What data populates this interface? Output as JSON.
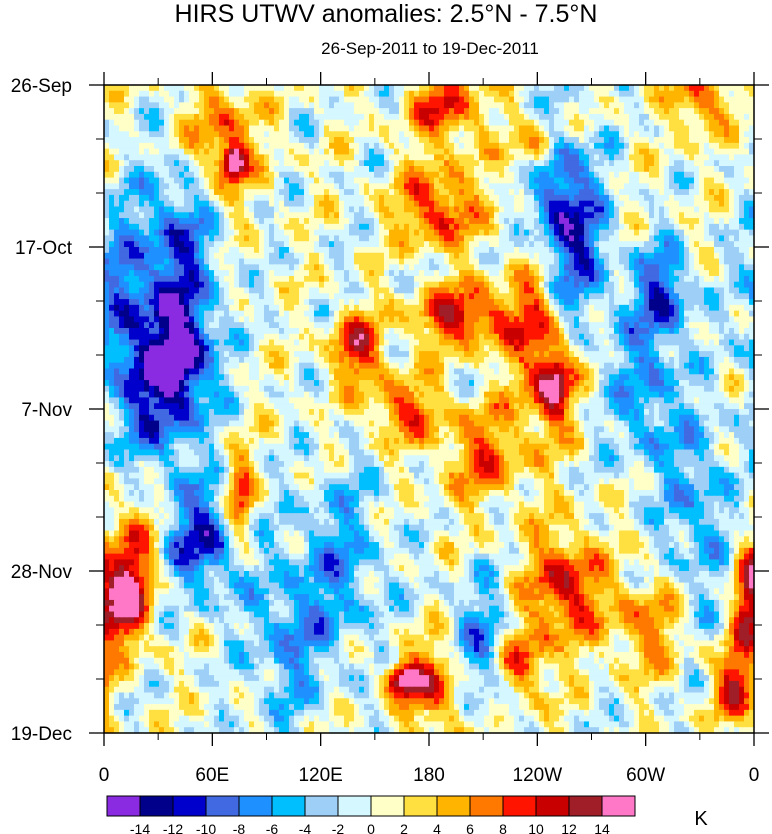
{
  "chart_data": {
    "type": "heatmap",
    "title": "HIRS UTWV anomalies: 2.5°N - 7.5°N",
    "subtitle": "26-Sep-2011 to 19-Dec-2011",
    "x_axis": {
      "variable": "longitude",
      "tick_labels": [
        "0",
        "60E",
        "120E",
        "180",
        "120W",
        "60W",
        "0"
      ],
      "tick_values_deg_east": [
        0,
        60,
        120,
        180,
        240,
        300,
        360
      ],
      "range": [
        0,
        360
      ]
    },
    "y_axis": {
      "variable": "time",
      "tick_labels": [
        "26-Sep",
        "17-Oct",
        "7-Nov",
        "28-Nov",
        "19-Dec"
      ],
      "tick_values_days": [
        0,
        21,
        42,
        63,
        84
      ],
      "range": [
        0,
        84
      ],
      "direction": "top-to-bottom"
    },
    "colorbar": {
      "unit_label": "K",
      "levels": [
        -14,
        -12,
        -10,
        -8,
        -6,
        -4,
        -2,
        0,
        2,
        4,
        6,
        8,
        10,
        12,
        14
      ],
      "level_labels": [
        "-14",
        "-12",
        "-10",
        "-8",
        "-6",
        "-4",
        "-2",
        "0",
        "2",
        "4",
        "6",
        "8",
        "10",
        "12",
        "14"
      ],
      "colors": [
        "#8a2be2",
        "#00008b",
        "#0000cd",
        "#4169e1",
        "#1e90ff",
        "#00bfff",
        "#9ecff7",
        "#d5f7ff",
        "#ffffc8",
        "#ffe040",
        "#ffb400",
        "#ff7800",
        "#ff1400",
        "#c80000",
        "#a01e28",
        "#ff78c8"
      ]
    },
    "anomaly_features": [
      {
        "lon": 72,
        "day": 10,
        "value": 15,
        "radius_lon": 6,
        "radius_day": 2
      },
      {
        "lon": 66,
        "day": 7,
        "value": 8,
        "radius_lon": 18,
        "radius_day": 8
      },
      {
        "lon": 40,
        "day": 21,
        "value": -9,
        "radius_lon": 22,
        "radius_day": 10
      },
      {
        "lon": 45,
        "day": 35,
        "value": -11,
        "radius_lon": 18,
        "radius_day": 8
      },
      {
        "lon": 30,
        "day": 40,
        "value": -9,
        "radius_lon": 20,
        "radius_day": 10
      },
      {
        "lon": 55,
        "day": 59,
        "value": -11,
        "radius_lon": 20,
        "radius_day": 7
      },
      {
        "lon": 75,
        "day": 54,
        "value": 10,
        "radius_lon": 8,
        "radius_day": 6
      },
      {
        "lon": 10,
        "day": 67,
        "value": 12,
        "radius_lon": 12,
        "radius_day": 5
      },
      {
        "lon": 15,
        "day": 62,
        "value": 8,
        "radius_lon": 15,
        "radius_day": 9
      },
      {
        "lon": 165,
        "day": 77,
        "value": 14,
        "radius_lon": 10,
        "radius_day": 2
      },
      {
        "lon": 185,
        "day": 78,
        "value": 9,
        "radius_lon": 20,
        "radius_day": 6
      },
      {
        "lon": 200,
        "day": 30,
        "value": 11,
        "radius_lon": 28,
        "radius_day": 4
      },
      {
        "lon": 185,
        "day": 16,
        "value": 10,
        "radius_lon": 22,
        "radius_day": 5
      },
      {
        "lon": 190,
        "day": 3,
        "value": 9,
        "radius_lon": 20,
        "radius_day": 5
      },
      {
        "lon": 140,
        "day": 34,
        "value": 11,
        "radius_lon": 14,
        "radius_day": 4
      },
      {
        "lon": 250,
        "day": 39,
        "value": 12,
        "radius_lon": 10,
        "radius_day": 5
      },
      {
        "lon": 240,
        "day": 32,
        "value": 8,
        "radius_lon": 15,
        "radius_day": 12
      },
      {
        "lon": 255,
        "day": 65,
        "value": 11,
        "radius_lon": 20,
        "radius_day": 7
      },
      {
        "lon": 230,
        "day": 75,
        "value": 10,
        "radius_lon": 15,
        "radius_day": 5
      },
      {
        "lon": 260,
        "day": 21,
        "value": -10,
        "radius_lon": 20,
        "radius_day": 10
      },
      {
        "lon": 250,
        "day": 12,
        "value": -8,
        "radius_lon": 15,
        "radius_day": 8
      },
      {
        "lon": 310,
        "day": 27,
        "value": -10,
        "radius_lon": 15,
        "radius_day": 6
      },
      {
        "lon": 300,
        "day": 40,
        "value": -7,
        "radius_lon": 18,
        "radius_day": 10
      },
      {
        "lon": 240,
        "day": 8,
        "value": 9,
        "radius_lon": 12,
        "radius_day": 4
      },
      {
        "lon": 210,
        "day": 74,
        "value": -9,
        "radius_lon": 18,
        "radius_day": 8
      },
      {
        "lon": 330,
        "day": 2,
        "value": 9,
        "radius_lon": 15,
        "radius_day": 4
      },
      {
        "lon": 355,
        "day": 66,
        "value": 8,
        "radius_lon": 8,
        "radius_day": 8
      },
      {
        "lon": 350,
        "day": 78,
        "value": 10,
        "radius_lon": 12,
        "radius_day": 5
      },
      {
        "lon": 10,
        "day": 30,
        "value": -8,
        "radius_lon": 15,
        "radius_day": 12
      },
      {
        "lon": 130,
        "day": 62,
        "value": -6,
        "radius_lon": 25,
        "radius_day": 12
      },
      {
        "lon": 100,
        "day": 72,
        "value": -6,
        "radius_lon": 20,
        "radius_day": 10
      },
      {
        "lon": 330,
        "day": 55,
        "value": -6,
        "radius_lon": 20,
        "radius_day": 12
      },
      {
        "lon": 210,
        "day": 48,
        "value": 7,
        "radius_lon": 25,
        "radius_day": 6
      },
      {
        "lon": 165,
        "day": 42,
        "value": 8,
        "radius_lon": 22,
        "radius_day": 4
      },
      {
        "lon": 300,
        "day": 70,
        "value": 7,
        "radius_lon": 18,
        "radius_day": 6
      }
    ]
  }
}
